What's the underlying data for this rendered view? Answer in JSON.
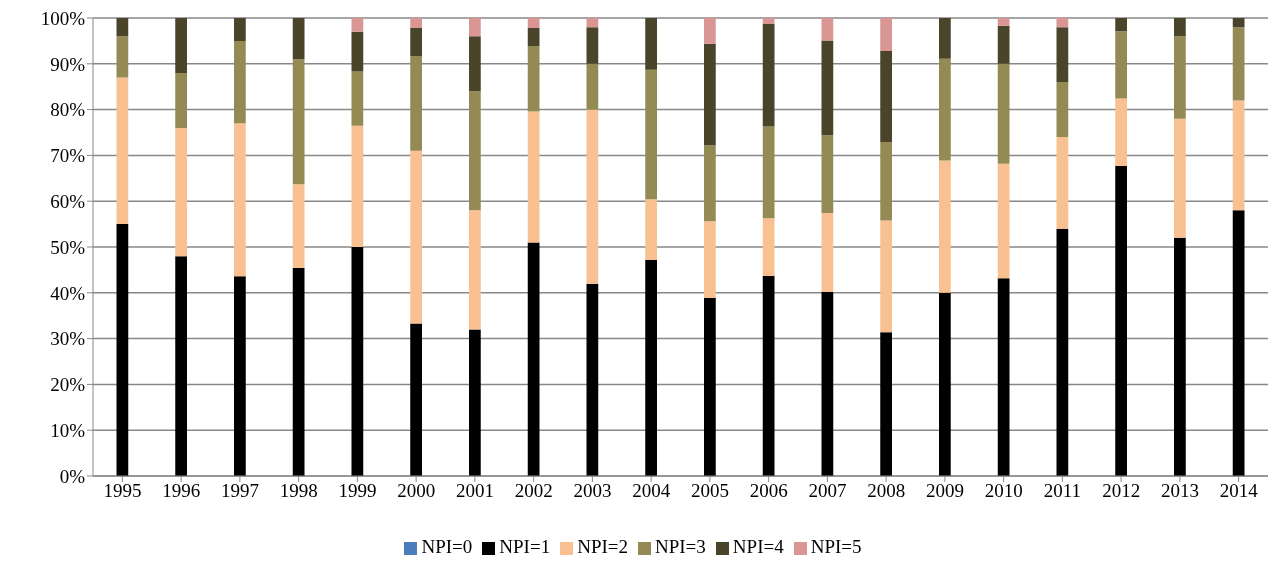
{
  "chart_data": {
    "type": "bar",
    "stacked": true,
    "categories": [
      "1995",
      "1996",
      "1997",
      "1998",
      "1999",
      "2000",
      "2001",
      "2002",
      "2003",
      "2004",
      "2005",
      "2006",
      "2007",
      "2008",
      "2009",
      "2010",
      "2011",
      "2012",
      "2013",
      "2014"
    ],
    "series": [
      {
        "name": "NPI=0",
        "color": "#4a7ebb",
        "values": [
          0,
          0,
          0,
          0,
          0,
          0,
          0,
          0,
          0,
          0,
          0,
          0,
          0,
          0,
          0,
          0,
          0,
          0,
          0,
          0
        ]
      },
      {
        "name": "NPI=1",
        "color": "#000000",
        "values": [
          55,
          48,
          43.6,
          45.4,
          50,
          33.3,
          32,
          51,
          42,
          47.2,
          38.9,
          43.7,
          40.2,
          31.4,
          40,
          43.2,
          54,
          67.7,
          52,
          58
        ]
      },
      {
        "name": "NPI=2",
        "color": "#f9c091",
        "values": [
          32,
          28,
          33.4,
          18.3,
          26.5,
          37.7,
          26,
          28.6,
          38,
          13.2,
          16.7,
          12.6,
          17.2,
          24.4,
          28.9,
          25,
          20,
          14.7,
          26,
          24
        ]
      },
      {
        "name": "NPI=3",
        "color": "#948a54",
        "values": [
          9,
          12,
          18,
          27.3,
          11.8,
          20.7,
          26,
          14.3,
          10,
          28.3,
          16.6,
          20,
          17,
          17.1,
          22.2,
          21.8,
          12,
          14.7,
          18,
          16
        ]
      },
      {
        "name": "NPI=4",
        "color": "#4a452a",
        "values": [
          4,
          12,
          5,
          9,
          8.7,
          6.1,
          12,
          3.9,
          8,
          11.3,
          22.2,
          22.4,
          20.7,
          19.9,
          8.9,
          8.3,
          12,
          2.9,
          4,
          2
        ]
      },
      {
        "name": "NPI=5",
        "color": "#d99694",
        "values": [
          0,
          0,
          0,
          0,
          3,
          2.2,
          4,
          2.2,
          2,
          0,
          5.6,
          1.3,
          4.9,
          7.2,
          0,
          1.7,
          2,
          0,
          0,
          0
        ]
      }
    ],
    "ylim": [
      0,
      100
    ],
    "yticks": [
      {
        "value": 0,
        "label": "0%"
      },
      {
        "value": 10,
        "label": "10%"
      },
      {
        "value": 20,
        "label": "20%"
      },
      {
        "value": 30,
        "label": "30%"
      },
      {
        "value": 40,
        "label": "40%"
      },
      {
        "value": 50,
        "label": "50%"
      },
      {
        "value": 60,
        "label": "60%"
      },
      {
        "value": 70,
        "label": "70%"
      },
      {
        "value": 80,
        "label": "80%"
      },
      {
        "value": 90,
        "label": "90%"
      },
      {
        "value": 100,
        "label": "100%"
      }
    ],
    "grid": "y",
    "legend": "bottom"
  }
}
